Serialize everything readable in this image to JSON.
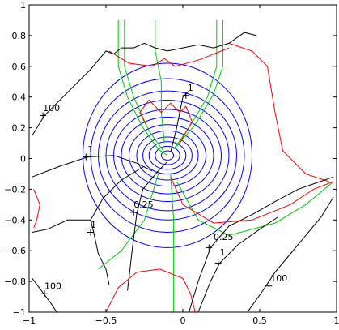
{
  "chart_data": {
    "type": "line",
    "xlim": [
      -1,
      1
    ],
    "ylim": [
      -1,
      1
    ],
    "grid": false,
    "x_ticks": [
      -1,
      -0.5,
      0,
      0.5,
      1
    ],
    "x_tick_labels": [
      "−1",
      "−0.5",
      "0",
      "0.5",
      "1"
    ],
    "y_ticks": [
      -1,
      -0.8,
      -0.6,
      -0.4,
      -0.2,
      0,
      0.2,
      0.4,
      0.6,
      0.8,
      1
    ],
    "y_tick_labels": [
      "−1",
      "−0.8",
      "−0.6",
      "−0.4",
      "−0.2",
      "0",
      "0.2",
      "0.4",
      "0.6",
      "0.8",
      "1"
    ],
    "colors": {
      "blue": "#0000ff",
      "red": "#ff0000",
      "green": "#00cc00",
      "black": "#000000"
    },
    "blue_rings": {
      "center": [
        -0.1,
        0.02
      ],
      "rx": [
        0.04,
        0.08,
        0.12,
        0.16,
        0.2,
        0.25,
        0.3,
        0.35,
        0.4,
        0.45,
        0.5,
        0.55
      ],
      "ry": [
        0.03,
        0.06,
        0.09,
        0.12,
        0.16,
        0.2,
        0.25,
        0.3,
        0.36,
        0.42,
        0.5,
        0.6
      ]
    },
    "series": [
      {
        "color": "green",
        "points": [
          [
            -0.42,
            0.9
          ],
          [
            -0.42,
            0.6
          ],
          [
            -0.36,
            0.4
          ],
          [
            -0.26,
            0.2
          ],
          [
            -0.16,
            0.06
          ],
          [
            -0.1,
            0.02
          ]
        ]
      },
      {
        "color": "green",
        "points": [
          [
            -0.38,
            0.9
          ],
          [
            -0.38,
            0.6
          ],
          [
            -0.32,
            0.4
          ],
          [
            -0.22,
            0.18
          ],
          [
            -0.12,
            0.04
          ]
        ]
      },
      {
        "color": "green",
        "points": [
          [
            0.22,
            0.9
          ],
          [
            0.22,
            0.6
          ],
          [
            0.16,
            0.4
          ],
          [
            0.04,
            0.2
          ],
          [
            -0.06,
            0.06
          ]
        ]
      },
      {
        "color": "green",
        "points": [
          [
            0.26,
            0.9
          ],
          [
            0.26,
            0.6
          ],
          [
            0.2,
            0.42
          ],
          [
            0.08,
            0.22
          ],
          [
            -0.04,
            0.08
          ]
        ]
      },
      {
        "color": "green",
        "points": [
          [
            -0.18,
            0.9
          ],
          [
            -0.18,
            0.7
          ],
          [
            -0.14,
            0.5
          ],
          [
            -0.14,
            0.3
          ],
          [
            -0.12,
            0.1
          ]
        ]
      },
      {
        "color": "green",
        "points": [
          [
            -0.08,
            -0.1
          ],
          [
            -0.06,
            -0.4
          ],
          [
            -0.06,
            -0.7
          ],
          [
            -0.06,
            -1
          ]
        ]
      },
      {
        "color": "green",
        "points": [
          [
            -0.04,
            -0.15
          ],
          [
            0.1,
            -0.4
          ],
          [
            0.3,
            -0.5
          ],
          [
            0.6,
            -0.42
          ],
          [
            0.8,
            -0.3
          ],
          [
            0.98,
            -0.15
          ]
        ]
      },
      {
        "color": "green",
        "points": [
          [
            -0.16,
            -0.1
          ],
          [
            -0.25,
            -0.4
          ],
          [
            -0.4,
            -0.6
          ],
          [
            -0.55,
            -0.72
          ]
        ]
      },
      {
        "color": "red",
        "points": [
          [
            0.3,
            0.75
          ],
          [
            0.45,
            0.7
          ],
          [
            0.55,
            0.6
          ],
          [
            0.6,
            0.3
          ],
          [
            0.65,
            0.05
          ],
          [
            0.8,
            -0.1
          ],
          [
            0.95,
            -0.15
          ]
        ]
      },
      {
        "color": "red",
        "points": [
          [
            -0.48,
            0.7
          ],
          [
            -0.35,
            0.62
          ],
          [
            -0.2,
            0.6
          ],
          [
            -0.12,
            0.65
          ],
          [
            -0.05,
            0.6
          ],
          [
            0.1,
            0.64
          ],
          [
            0.3,
            0.72
          ]
        ]
      },
      {
        "color": "red",
        "points": [
          [
            -0.24,
            0.22
          ],
          [
            -0.28,
            0.3
          ],
          [
            -0.22,
            0.38
          ],
          [
            -0.14,
            0.3
          ],
          [
            -0.08,
            0.36
          ],
          [
            -0.02,
            0.3
          ],
          [
            0.02,
            0.34
          ],
          [
            0.06,
            0.24
          ],
          [
            -0.02,
            0.1
          ]
        ]
      },
      {
        "color": "red",
        "points": [
          [
            -0.08,
            -0.12
          ],
          [
            0.0,
            -0.3
          ],
          [
            0.2,
            -0.42
          ],
          [
            0.45,
            -0.4
          ],
          [
            0.7,
            -0.3
          ],
          [
            0.85,
            -0.2
          ],
          [
            0.98,
            -0.15
          ]
        ]
      },
      {
        "color": "red",
        "points": [
          [
            -0.5,
            -1
          ],
          [
            -0.42,
            -0.84
          ],
          [
            -0.3,
            -0.74
          ],
          [
            -0.15,
            -0.72
          ],
          [
            0.0,
            -0.78
          ],
          [
            0.05,
            -0.88
          ],
          [
            0.08,
            -1
          ]
        ]
      },
      {
        "color": "red",
        "points": [
          [
            -0.97,
            -0.2
          ],
          [
            -0.93,
            -0.3
          ],
          [
            -0.95,
            -0.4
          ],
          [
            -0.97,
            -0.45
          ]
        ]
      },
      {
        "color": "black",
        "points": [
          [
            -0.98,
            0.15
          ],
          [
            -0.9,
            0.28
          ],
          [
            -0.78,
            0.4
          ],
          [
            -0.6,
            0.58
          ],
          [
            -0.5,
            0.7
          ],
          [
            -0.45,
            0.68
          ],
          [
            -0.4,
            0.72
          ],
          [
            -0.32,
            0.72
          ],
          [
            -0.25,
            0.75
          ],
          [
            -0.18,
            0.72
          ],
          [
            -0.1,
            0.7
          ],
          [
            0.0,
            0.72
          ],
          [
            0.1,
            0.74
          ],
          [
            0.2,
            0.72
          ],
          [
            0.3,
            0.75
          ],
          [
            0.4,
            0.82
          ],
          [
            0.48,
            0.8
          ]
        ]
      },
      {
        "color": "black",
        "points": [
          [
            -0.98,
            -0.12
          ],
          [
            -0.8,
            -0.05
          ],
          [
            -0.62,
            0.01
          ],
          [
            -0.45,
            0.02
          ],
          [
            -0.3,
            -0.03
          ],
          [
            -0.2,
            -0.08
          ]
        ]
      },
      {
        "color": "black",
        "points": [
          [
            -0.6,
            -0.4
          ],
          [
            -0.58,
            -0.48
          ],
          [
            -0.55,
            -0.62
          ],
          [
            -0.5,
            -0.72
          ],
          [
            -0.48,
            -0.82
          ]
        ]
      },
      {
        "color": "black",
        "points": [
          [
            -0.6,
            -0.4
          ],
          [
            -0.52,
            -0.26
          ],
          [
            -0.4,
            -0.14
          ],
          [
            -0.25,
            -0.05
          ]
        ]
      },
      {
        "color": "black",
        "points": [
          [
            -0.6,
            -0.4
          ],
          [
            -0.75,
            -0.4
          ],
          [
            -0.88,
            -0.46
          ],
          [
            -0.98,
            -0.48
          ]
        ]
      },
      {
        "color": "black",
        "points": [
          [
            -0.36,
            -0.86
          ],
          [
            -0.33,
            -0.6
          ],
          [
            -0.3,
            -0.36
          ],
          [
            -0.26,
            -0.2
          ],
          [
            -0.16,
            -0.08
          ],
          [
            -0.1,
            -0.02
          ]
        ]
      },
      {
        "color": "black",
        "points": [
          [
            -0.08,
            0.04
          ],
          [
            -0.04,
            0.2
          ],
          [
            0.0,
            0.4
          ],
          [
            0.04,
            0.44
          ]
        ]
      },
      {
        "color": "black",
        "points": [
          [
            0.04,
            -1
          ],
          [
            0.1,
            -0.8
          ],
          [
            0.18,
            -0.58
          ],
          [
            0.3,
            -0.44
          ],
          [
            0.46,
            -0.36
          ],
          [
            0.6,
            -0.28
          ],
          [
            0.75,
            -0.2
          ],
          [
            0.98,
            -0.12
          ]
        ]
      },
      {
        "color": "black",
        "points": [
          [
            0.1,
            -1
          ],
          [
            0.18,
            -0.8
          ],
          [
            0.24,
            -0.68
          ],
          [
            0.36,
            -0.56
          ],
          [
            0.5,
            -0.46
          ],
          [
            0.62,
            -0.38
          ]
        ]
      },
      {
        "color": "black",
        "points": [
          [
            0.42,
            -1
          ],
          [
            0.52,
            -0.86
          ],
          [
            0.6,
            -0.74
          ],
          [
            0.7,
            -0.62
          ],
          [
            0.8,
            -0.5
          ],
          [
            0.9,
            -0.38
          ],
          [
            0.98,
            -0.25
          ]
        ]
      },
      {
        "color": "black",
        "points": [
          [
            -0.98,
            -0.78
          ],
          [
            -0.92,
            -0.86
          ],
          [
            -0.86,
            -0.94
          ],
          [
            -0.82,
            -1
          ]
        ]
      }
    ],
    "annotations": [
      {
        "text": "100",
        "x": -0.91,
        "y": 0.31,
        "marker": [
          -0.91,
          0.28
        ]
      },
      {
        "text": "1",
        "x": -0.62,
        "y": 0.04,
        "marker": [
          -0.63,
          0.01
        ]
      },
      {
        "text": "1",
        "x": 0.03,
        "y": 0.44,
        "marker": [
          0.02,
          0.41
        ]
      },
      {
        "text": "0.25",
        "x": -0.32,
        "y": -0.32,
        "marker": [
          -0.32,
          -0.35
        ]
      },
      {
        "text": "1",
        "x": -0.6,
        "y": -0.45,
        "marker": [
          -0.6,
          -0.48
        ]
      },
      {
        "text": "0.25",
        "x": 0.2,
        "y": -0.53,
        "marker": [
          0.17,
          -0.58
        ]
      },
      {
        "text": "1",
        "x": 0.24,
        "y": -0.63,
        "marker": [
          0.23,
          -0.68
        ]
      },
      {
        "text": "100",
        "x": 0.57,
        "y": -0.8,
        "marker": [
          0.56,
          -0.83
        ]
      },
      {
        "text": "100",
        "x": -0.9,
        "y": -0.85,
        "marker": [
          -0.9,
          -0.88
        ]
      }
    ]
  }
}
